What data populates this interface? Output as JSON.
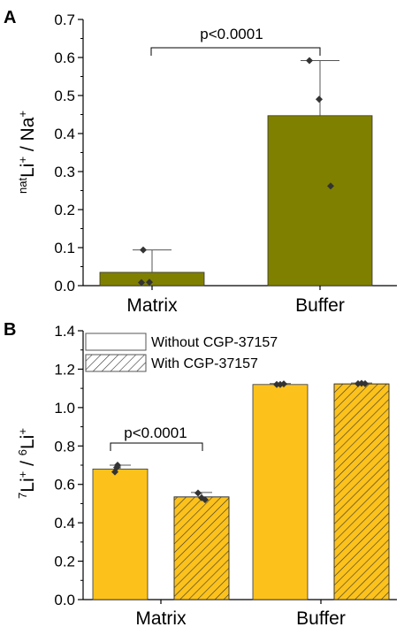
{
  "colors": {
    "panel_a_bar": "#808000",
    "panel_b_bar": "#fcc21b",
    "hatch": "#333333",
    "axis": "#000000",
    "errorbar": "#555555",
    "point": "#333333"
  },
  "chart_data": [
    {
      "panel": "A",
      "type": "bar",
      "categories": [
        "Matrix",
        "Buffer"
      ],
      "values": [
        0.035,
        0.447
      ],
      "error_upper": [
        0.094,
        0.592
      ],
      "points": [
        [
          0.008,
          0.009,
          0.094
        ],
        [
          0.592,
          0.49,
          0.262
        ]
      ],
      "ylabel_parts": [
        "nat",
        "Li",
        "+",
        " / Na",
        "+"
      ],
      "ylim": [
        0,
        0.7
      ],
      "yticks": [
        "0.0",
        "0.1",
        "0.2",
        "0.3",
        "0.4",
        "0.5",
        "0.6",
        "0.7"
      ],
      "annotation": "p<0.0001",
      "grid": false
    },
    {
      "panel": "B",
      "type": "bar",
      "categories": [
        "Matrix",
        "Buffer"
      ],
      "series": [
        {
          "name": "Without CGP-37157",
          "values": [
            0.68,
            1.12
          ],
          "error_upper": [
            0.7,
            1.125
          ],
          "points": [
            [
              0.665,
              0.688,
              0.7
            ],
            [
              1.12,
              1.12,
              1.123
            ]
          ]
        },
        {
          "name": "With CGP-37157",
          "values": [
            0.535,
            1.123
          ],
          "error_upper": [
            0.558,
            1.128
          ],
          "points": [
            [
              0.555,
              0.52,
              0.53
            ],
            [
              1.124,
              1.126,
              1.124
            ]
          ]
        }
      ],
      "ylabel_parts": [
        "7",
        "Li",
        "+",
        " / ",
        "6",
        "Li",
        "+"
      ],
      "ylim": [
        0,
        1.4
      ],
      "yticks": [
        "0.0",
        "0.2",
        "0.4",
        "0.6",
        "0.8",
        "1.0",
        "1.2",
        "1.4"
      ],
      "annotation": "p<0.0001",
      "legend_position": "top-left",
      "grid": false
    }
  ]
}
